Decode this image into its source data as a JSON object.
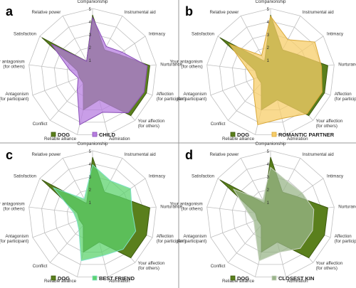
{
  "figure": {
    "colors": {
      "dog_fill": "#5a7f1c",
      "dog_stroke": "#3d5a10",
      "grid": "#bfbfbf",
      "divider": "#999999"
    },
    "categories": [
      "Companionship",
      "Instrumental aid",
      "Intimacy",
      "Nurturance",
      "Affection (for participant)",
      "Your affection (for others)",
      "Admiration",
      "Reliable alliance",
      "Conflict",
      "Antagonism (for participant)",
      "Your antagonism (for others)",
      "Satisfaction",
      "Relative power"
    ],
    "axis_ticks": [
      "1",
      "2",
      "3",
      "4",
      "5"
    ],
    "rmax": 5,
    "grid": true
  },
  "chart_data": [
    {
      "panel": "a",
      "type": "radar",
      "categories": [
        "Companionship",
        "Instrumental aid",
        "Intimacy",
        "Nurturance",
        "Affection (for participant)",
        "Your affection (for others)",
        "Admiration",
        "Reliable alliance",
        "Conflict",
        "Antagonism (for participant)",
        "Your antagonism (for others)",
        "Satisfaction",
        "Relative power"
      ],
      "series": [
        {
          "name": "DOG",
          "values": [
            4.5,
            2.0,
            2.5,
            4.5,
            4.5,
            4.5,
            2.2,
            3.0,
            1.1,
            1.1,
            1.2,
            4.8,
            1.0
          ],
          "fill": "#5a7f1c",
          "stroke": "#3d5a10"
        },
        {
          "name": "CHILD",
          "values": [
            4.3,
            2.3,
            2.8,
            4.3,
            4.3,
            4.2,
            3.2,
            4.2,
            1.8,
            1.2,
            1.8,
            3.9,
            1.0
          ],
          "fill": "#b77ee0",
          "stroke": "#8a4fb8"
        }
      ],
      "rlim": [
        0,
        5
      ],
      "legend_position": "bottom"
    },
    {
      "panel": "b",
      "type": "radar",
      "categories": [
        "Companionship",
        "Instrumental aid",
        "Intimacy",
        "Nurturance",
        "Affection (for participant)",
        "Your affection (for others)",
        "Admiration",
        "Reliable alliance",
        "Conflict",
        "Antagonism (for participant)",
        "Your antagonism (for others)",
        "Satisfaction",
        "Relative power"
      ],
      "series": [
        {
          "name": "DOG",
          "values": [
            4.5,
            2.0,
            2.5,
            4.5,
            4.5,
            4.5,
            2.2,
            3.0,
            1.1,
            1.1,
            1.2,
            4.8,
            1.0
          ],
          "fill": "#5a7f1c",
          "stroke": "#3d5a10"
        },
        {
          "name": "ROMANTIC PARTNER",
          "values": [
            4.4,
            2.9,
            4.2,
            4.0,
            4.3,
            4.3,
            3.7,
            4.2,
            2.0,
            1.4,
            1.8,
            3.9,
            1.5
          ],
          "fill": "#f7cd6a",
          "stroke": "#d9a838"
        }
      ],
      "rlim": [
        0,
        5
      ],
      "legend_position": "bottom"
    },
    {
      "panel": "c",
      "type": "radar",
      "categories": [
        "Companionship",
        "Instrumental aid",
        "Intimacy",
        "Nurturance",
        "Affection (for participant)",
        "Your affection (for others)",
        "Admiration",
        "Reliable alliance",
        "Conflict",
        "Antagonism (for participant)",
        "Your antagonism (for others)",
        "Satisfaction",
        "Relative power"
      ],
      "series": [
        {
          "name": "DOG",
          "values": [
            4.5,
            2.0,
            2.5,
            4.5,
            4.5,
            4.5,
            2.2,
            3.0,
            1.1,
            1.1,
            1.2,
            4.8,
            1.0
          ],
          "fill": "#5a7f1c",
          "stroke": "#3d5a10"
        },
        {
          "name": "BEST FRIEND",
          "values": [
            3.9,
            3.0,
            3.6,
            3.1,
            3.6,
            3.6,
            3.3,
            3.7,
            1.6,
            1.3,
            1.5,
            3.7,
            1.4
          ],
          "fill": "#5ed36e",
          "stroke": "#7fe0c8"
        }
      ],
      "rlim": [
        0,
        5
      ],
      "legend_position": "bottom"
    },
    {
      "panel": "d",
      "type": "radar",
      "categories": [
        "Companionship",
        "Instrumental aid",
        "Intimacy",
        "Nurturance",
        "Affection (for participant)",
        "Your affection (for others)",
        "Admiration",
        "Reliable alliance",
        "Conflict",
        "Antagonism (for participant)",
        "Your antagonism (for others)",
        "Satisfaction",
        "Relative power"
      ],
      "series": [
        {
          "name": "DOG",
          "values": [
            4.5,
            2.0,
            2.5,
            4.5,
            4.5,
            4.5,
            2.2,
            3.0,
            1.1,
            1.1,
            1.2,
            4.8,
            1.0
          ],
          "fill": "#5a7f1c",
          "stroke": "#3d5a10"
        },
        {
          "name": "CLOSEST KIN",
          "values": [
            3.7,
            2.9,
            3.0,
            3.4,
            3.5,
            3.5,
            3.0,
            3.7,
            1.8,
            1.4,
            1.8,
            3.5,
            1.3
          ],
          "fill": "#9ab58a",
          "stroke": "#c8d3c0"
        }
      ],
      "rlim": [
        0,
        5
      ],
      "legend_position": "bottom"
    }
  ]
}
